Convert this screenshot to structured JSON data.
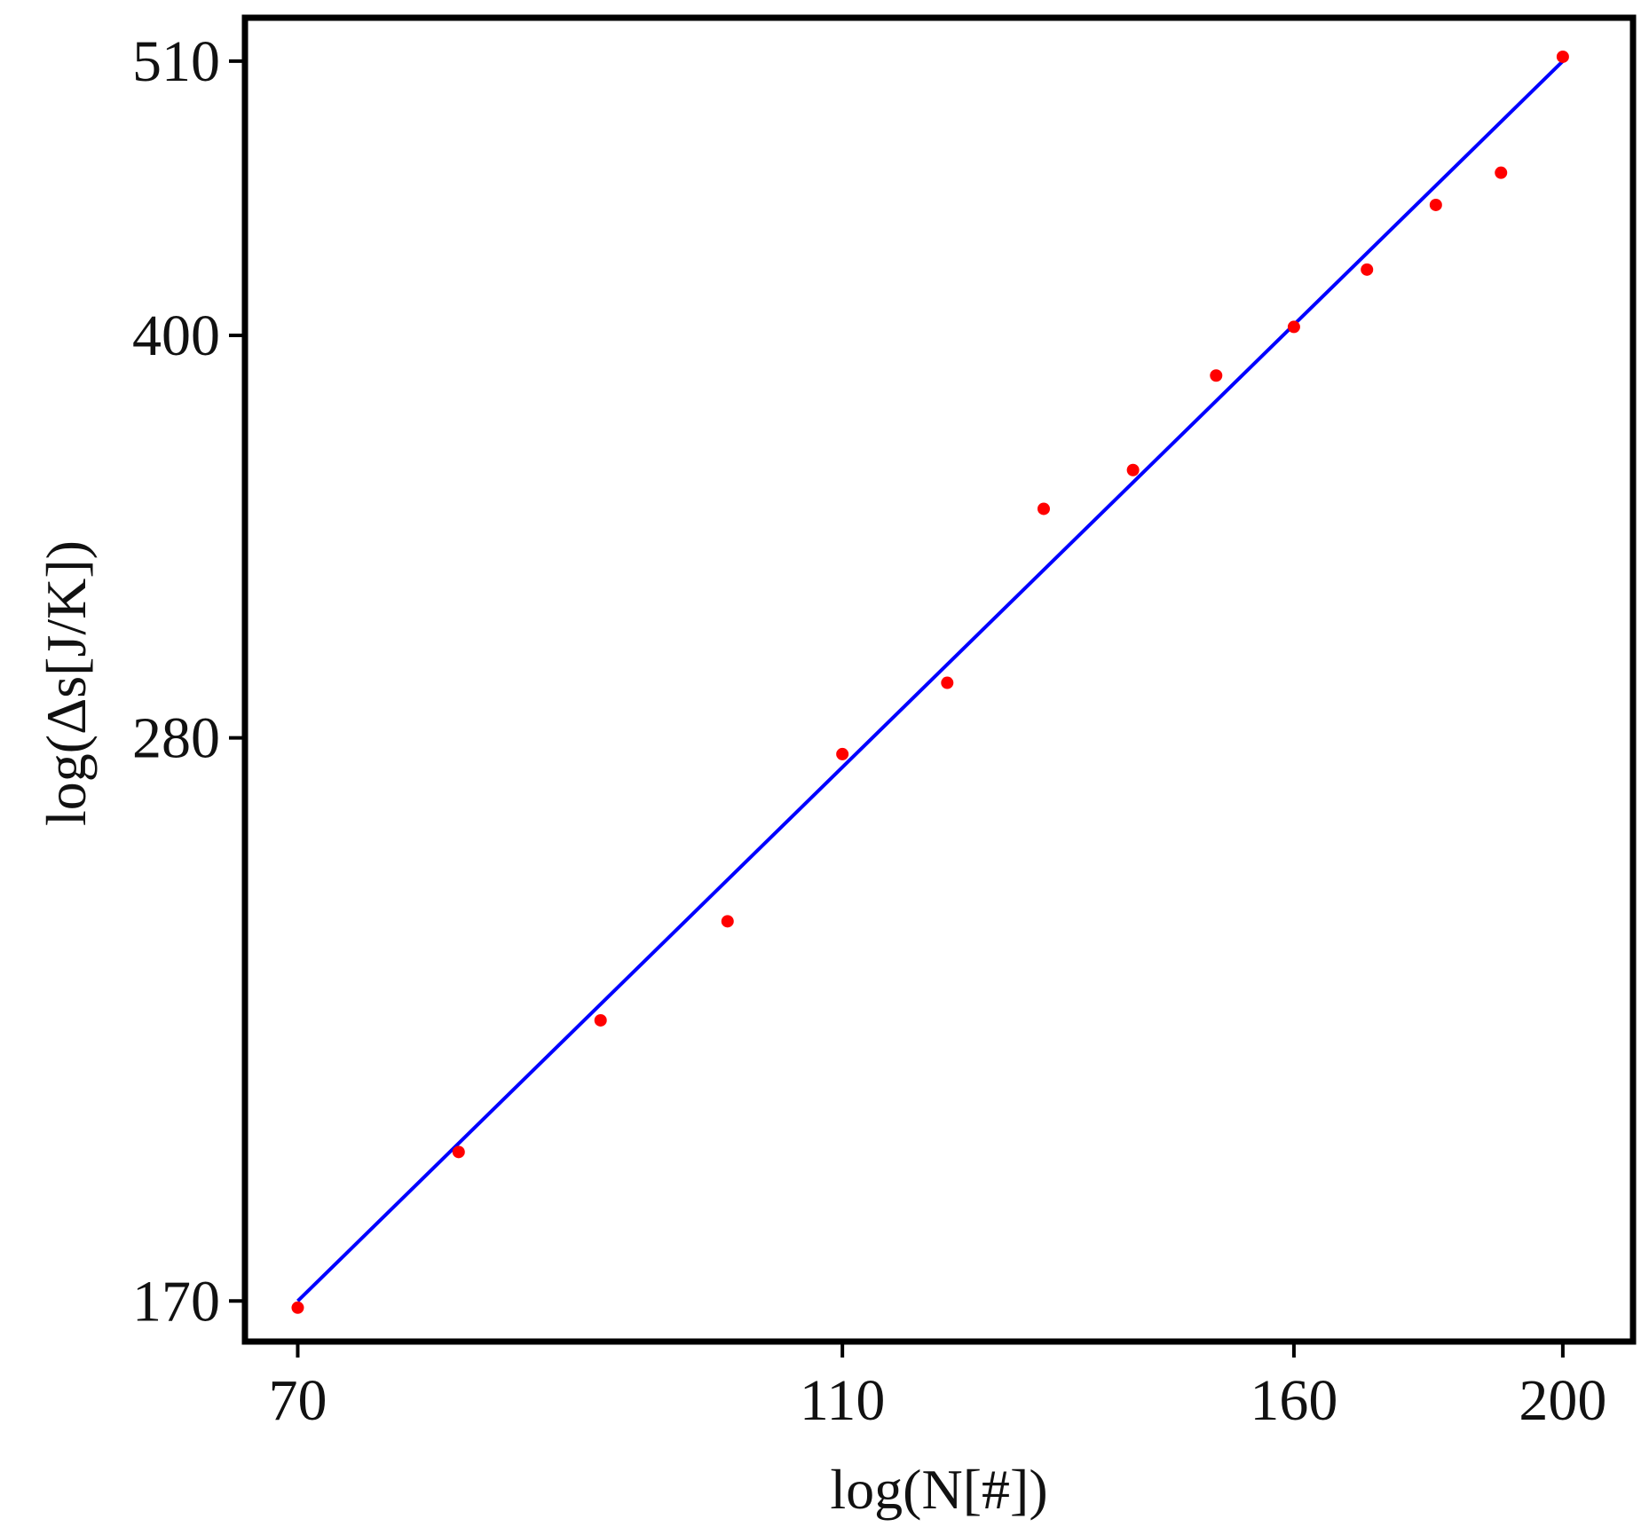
{
  "chart_data": {
    "type": "scatter",
    "xlabel": "log(N[#])",
    "ylabel": "log(Δs[J/K])",
    "x_scale": "log",
    "y_scale": "log",
    "xlim": [
      67,
      212
    ],
    "ylim": [
      164,
      530
    ],
    "x_ticks": [
      70,
      110,
      160,
      200
    ],
    "y_ticks": [
      170,
      280,
      400,
      510
    ],
    "grid": false,
    "legend": "none",
    "colors": {
      "points": "#ff0000",
      "fit": "#0000ff",
      "frame": "#000000"
    },
    "series": [
      {
        "kind": "points",
        "x": [
          70,
          80,
          90,
          100,
          110,
          120,
          130,
          140,
          150,
          160,
          170,
          180,
          190,
          200
        ],
        "y": [
          169,
          194,
          218,
          238,
          276,
          294,
          343,
          355,
          386,
          403,
          424,
          449,
          462,
          512
        ]
      },
      {
        "kind": "fit-line",
        "x": [
          70,
          200
        ],
        "y": [
          170,
          510
        ]
      }
    ]
  }
}
